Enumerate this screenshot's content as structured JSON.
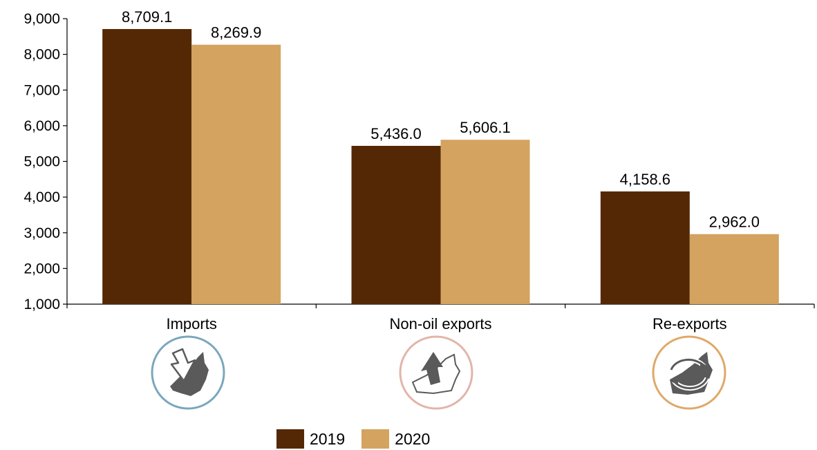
{
  "chart_data": {
    "type": "bar",
    "categories": [
      "Imports",
      "Non-oil exports",
      "Re-exports"
    ],
    "series": [
      {
        "name": "2019",
        "color": "#552805",
        "values": [
          8709.1,
          5436.0,
          4158.6
        ],
        "labels": [
          "8,709.1",
          "5,436.0",
          "4,158.6"
        ]
      },
      {
        "name": "2020",
        "color": "#D3A35F",
        "values": [
          8269.9,
          5606.1,
          2962.0
        ],
        "labels": [
          "8,269.9",
          "5,606.1",
          "2,962.0"
        ]
      }
    ],
    "ylim": [
      1000,
      9000
    ],
    "yticks": [
      1000,
      2000,
      3000,
      4000,
      5000,
      6000,
      7000,
      8000,
      9000
    ],
    "ytick_labels": [
      "1,000",
      "2,000",
      "3,000",
      "4,000",
      "5,000",
      "6,000",
      "7,000",
      "8,000",
      "9,000"
    ],
    "title": "",
    "xlabel": "",
    "ylabel": "",
    "grid": false,
    "legend_position": "bottom-center"
  },
  "icons": [
    {
      "name": "imports-icon",
      "ring_color": "#7BA7BC"
    },
    {
      "name": "non-oil-exports-icon",
      "ring_color": "#E2B5A8"
    },
    {
      "name": "re-exports-icon",
      "ring_color": "#E0A868"
    }
  ]
}
